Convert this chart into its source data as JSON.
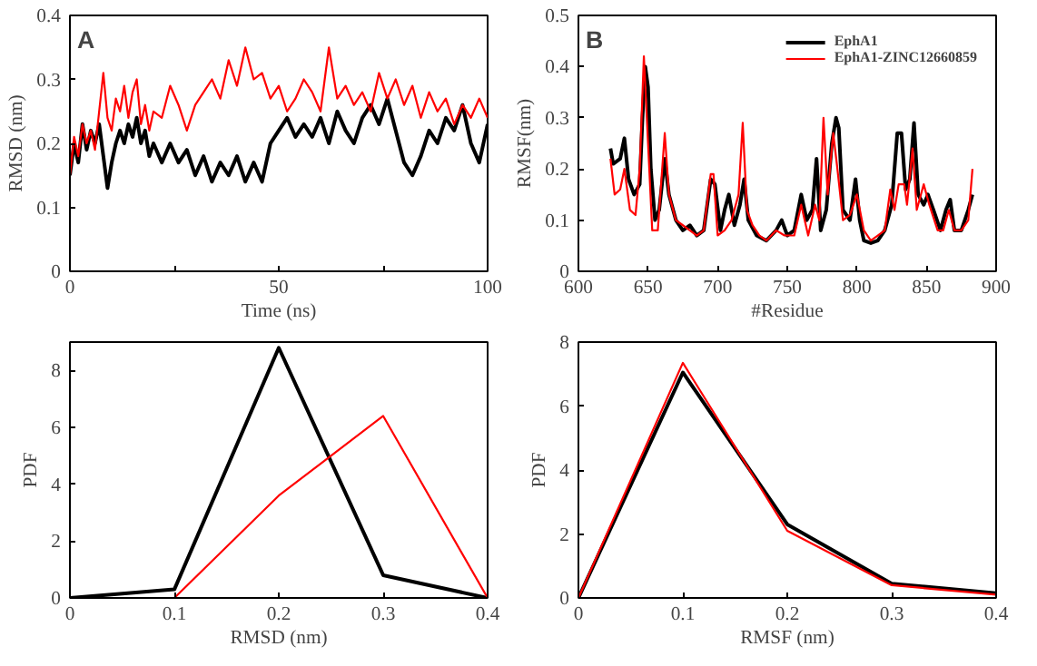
{
  "chart_data": [
    {
      "type": "line",
      "annotations": [
        "A"
      ],
      "xlabel": "Time (ns)",
      "ylabel": "RMSD (nm)",
      "xlim": [
        0,
        100
      ],
      "ylim": [
        0,
        0.4
      ],
      "xticks": [
        0,
        {
          "value": 25,
          "label": null
        },
        50,
        {
          "value": 75,
          "label": null
        },
        100
      ],
      "yticks": [
        0,
        0.1,
        0.2,
        0.3,
        0.4
      ],
      "series": [
        {
          "color": "#000000",
          "x": [
            0,
            1,
            2,
            3,
            4,
            5,
            6,
            7,
            8,
            9,
            10,
            11,
            12,
            13,
            14,
            15,
            16,
            17,
            18,
            19,
            20,
            22,
            24,
            26,
            28,
            30,
            32,
            34,
            36,
            38,
            40,
            42,
            44,
            46,
            48,
            50,
            52,
            54,
            56,
            58,
            60,
            62,
            64,
            66,
            68,
            70,
            72,
            74,
            76,
            78,
            80,
            82,
            84,
            86,
            88,
            90,
            92,
            94,
            96,
            98,
            100
          ],
          "values": [
            0.15,
            0.2,
            0.17,
            0.23,
            0.19,
            0.22,
            0.2,
            0.23,
            0.18,
            0.13,
            0.17,
            0.2,
            0.22,
            0.2,
            0.23,
            0.21,
            0.24,
            0.2,
            0.22,
            0.18,
            0.2,
            0.17,
            0.2,
            0.17,
            0.19,
            0.15,
            0.18,
            0.14,
            0.17,
            0.15,
            0.18,
            0.14,
            0.17,
            0.14,
            0.2,
            0.22,
            0.24,
            0.21,
            0.23,
            0.21,
            0.24,
            0.2,
            0.25,
            0.22,
            0.2,
            0.24,
            0.26,
            0.23,
            0.27,
            0.22,
            0.17,
            0.15,
            0.18,
            0.22,
            0.2,
            0.24,
            0.22,
            0.26,
            0.2,
            0.17,
            0.23
          ]
        },
        {
          "color": "#ff0000",
          "x": [
            0,
            1,
            2,
            3,
            4,
            5,
            6,
            7,
            8,
            9,
            10,
            11,
            12,
            13,
            14,
            15,
            16,
            17,
            18,
            19,
            20,
            22,
            24,
            26,
            28,
            30,
            32,
            34,
            36,
            38,
            40,
            42,
            44,
            46,
            48,
            50,
            52,
            54,
            56,
            58,
            60,
            62,
            64,
            66,
            68,
            70,
            72,
            74,
            76,
            78,
            80,
            82,
            84,
            86,
            88,
            90,
            92,
            94,
            96,
            98,
            100
          ],
          "values": [
            0.15,
            0.21,
            0.18,
            0.23,
            0.2,
            0.22,
            0.19,
            0.25,
            0.31,
            0.24,
            0.22,
            0.27,
            0.25,
            0.29,
            0.24,
            0.28,
            0.3,
            0.23,
            0.26,
            0.22,
            0.25,
            0.24,
            0.29,
            0.26,
            0.22,
            0.26,
            0.28,
            0.3,
            0.27,
            0.33,
            0.29,
            0.35,
            0.3,
            0.31,
            0.27,
            0.29,
            0.25,
            0.27,
            0.3,
            0.28,
            0.25,
            0.35,
            0.27,
            0.29,
            0.26,
            0.28,
            0.25,
            0.31,
            0.27,
            0.3,
            0.26,
            0.29,
            0.24,
            0.28,
            0.25,
            0.27,
            0.23,
            0.26,
            0.24,
            0.27,
            0.24
          ]
        }
      ]
    },
    {
      "type": "line",
      "annotations": [
        "B"
      ],
      "xlabel": "#Residue",
      "ylabel": "RMSF(nm)",
      "xlim": [
        600,
        900
      ],
      "ylim": [
        0,
        0.5
      ],
      "xticks": [
        600,
        650,
        700,
        750,
        800,
        850,
        900
      ],
      "yticks": [
        0,
        0.1,
        0.2,
        0.3,
        0.4,
        0.5
      ],
      "legend": "top right",
      "series": [
        {
          "name": "EphA1",
          "color": "#000000",
          "x": [
            623,
            625,
            630,
            633,
            636,
            640,
            644,
            646,
            648,
            650,
            652,
            655,
            658,
            662,
            665,
            670,
            675,
            680,
            685,
            690,
            695,
            698,
            702,
            705,
            708,
            712,
            716,
            719,
            722,
            728,
            735,
            742,
            746,
            750,
            755,
            760,
            764,
            768,
            771,
            774,
            778,
            782,
            785,
            787,
            790,
            795,
            799,
            802,
            805,
            810,
            815,
            820,
            825,
            829,
            832,
            835,
            838,
            841,
            844,
            848,
            851,
            855,
            860,
            864,
            867,
            870,
            875,
            880,
            883
          ],
          "values": [
            0.24,
            0.21,
            0.22,
            0.26,
            0.18,
            0.15,
            0.17,
            0.3,
            0.4,
            0.36,
            0.2,
            0.1,
            0.12,
            0.22,
            0.15,
            0.1,
            0.08,
            0.09,
            0.07,
            0.08,
            0.18,
            0.17,
            0.08,
            0.12,
            0.15,
            0.09,
            0.13,
            0.18,
            0.1,
            0.07,
            0.06,
            0.08,
            0.1,
            0.07,
            0.08,
            0.15,
            0.1,
            0.12,
            0.22,
            0.08,
            0.12,
            0.25,
            0.3,
            0.28,
            0.12,
            0.1,
            0.18,
            0.1,
            0.06,
            0.055,
            0.06,
            0.08,
            0.13,
            0.27,
            0.27,
            0.16,
            0.18,
            0.29,
            0.15,
            0.13,
            0.15,
            0.12,
            0.08,
            0.12,
            0.14,
            0.08,
            0.08,
            0.12,
            0.15
          ]
        },
        {
          "name": "EphA1-ZINC12660859",
          "color": "#ff0000",
          "x": [
            623,
            626,
            630,
            633,
            637,
            641,
            644,
            647,
            650,
            653,
            657,
            662,
            665,
            670,
            675,
            680,
            685,
            690,
            695,
            697,
            700,
            705,
            710,
            715,
            718,
            721,
            725,
            730,
            735,
            742,
            748,
            755,
            760,
            765,
            770,
            773,
            776,
            779,
            783,
            786,
            790,
            795,
            800,
            805,
            810,
            815,
            820,
            824,
            827,
            830,
            834,
            836,
            840,
            843,
            848,
            852,
            858,
            862,
            866,
            870,
            875,
            880,
            883
          ],
          "values": [
            0.22,
            0.15,
            0.16,
            0.2,
            0.12,
            0.11,
            0.2,
            0.42,
            0.25,
            0.08,
            0.08,
            0.27,
            0.15,
            0.1,
            0.09,
            0.08,
            0.07,
            0.08,
            0.19,
            0.19,
            0.07,
            0.08,
            0.1,
            0.15,
            0.29,
            0.12,
            0.09,
            0.07,
            0.06,
            0.08,
            0.07,
            0.07,
            0.13,
            0.07,
            0.13,
            0.1,
            0.3,
            0.15,
            0.27,
            0.2,
            0.1,
            0.11,
            0.15,
            0.08,
            0.06,
            0.07,
            0.08,
            0.16,
            0.12,
            0.17,
            0.17,
            0.13,
            0.24,
            0.12,
            0.17,
            0.13,
            0.08,
            0.08,
            0.12,
            0.08,
            0.08,
            0.1,
            0.2
          ]
        }
      ]
    },
    {
      "type": "line",
      "xlabel": "RMSD (nm)",
      "ylabel": "PDF",
      "xlim": [
        0,
        0.4
      ],
      "ylim": [
        0,
        9
      ],
      "xticks": [
        0,
        0.1,
        0.2,
        0.3,
        0.4
      ],
      "yticks": [
        0,
        2,
        4,
        6,
        8
      ],
      "series": [
        {
          "color": "#000000",
          "x": [
            0,
            0.1,
            0.2,
            0.3,
            0.4
          ],
          "values": [
            0,
            0.3,
            8.8,
            0.8,
            0
          ]
        },
        {
          "color": "#ff0000",
          "x": [
            0,
            0.1,
            0.2,
            0.3,
            0.4
          ],
          "values": [
            0,
            0,
            3.6,
            6.4,
            0
          ]
        }
      ]
    },
    {
      "type": "line",
      "xlabel": "RMSF (nm)",
      "ylabel": "PDF",
      "xlim": [
        0,
        0.4
      ],
      "ylim": [
        0,
        8
      ],
      "xticks": [
        0,
        0.1,
        0.2,
        0.3,
        0.4
      ],
      "yticks": [
        0,
        2,
        4,
        6,
        8
      ],
      "series": [
        {
          "color": "#000000",
          "x": [
            0,
            0.1,
            0.2,
            0.3,
            0.4
          ],
          "values": [
            0,
            7.05,
            2.3,
            0.45,
            0.15
          ]
        },
        {
          "color": "#ff0000",
          "x": [
            0,
            0.1,
            0.2,
            0.3,
            0.4
          ],
          "values": [
            0,
            7.35,
            2.1,
            0.4,
            0.1
          ]
        }
      ]
    }
  ]
}
